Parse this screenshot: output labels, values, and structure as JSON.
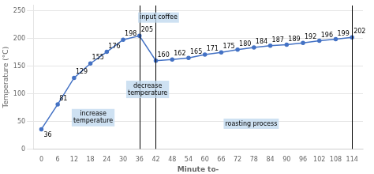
{
  "chart_data": {
    "type": "line",
    "x": [
      0,
      6,
      12,
      18,
      24,
      30,
      36,
      42,
      48,
      54,
      60,
      66,
      72,
      78,
      84,
      90,
      96,
      102,
      108,
      114
    ],
    "values": [
      36,
      81,
      129,
      155,
      176,
      198,
      205,
      160,
      162,
      165,
      171,
      175,
      180,
      184,
      187,
      189,
      192,
      196,
      199,
      202
    ],
    "color": "#4472c4",
    "marker": "circle",
    "data_labels": true,
    "xlabel": "Minute to-",
    "ylabel": "Temperature (°C)",
    "xlim": [
      -3,
      118
    ],
    "ylim": [
      0,
      260
    ],
    "xticks": [
      0,
      6,
      12,
      18,
      24,
      30,
      36,
      42,
      48,
      54,
      60,
      66,
      72,
      78,
      84,
      90,
      96,
      102,
      108,
      114
    ],
    "yticks": [
      0,
      50,
      100,
      150,
      200,
      250
    ],
    "grid": "y",
    "vlines": {
      "x": [
        36,
        42,
        114
      ],
      "color": "black"
    },
    "annotations": [
      {
        "text": "input coffee",
        "x": 43,
        "y": 238,
        "color": "#bdd7ee"
      },
      {
        "text": "increase\ntemperature",
        "x": 19,
        "y": 57,
        "color": "#bdd7ee"
      },
      {
        "text": "decrease\ntemperature",
        "x": 39,
        "y": 108,
        "color": "#bdd7ee"
      },
      {
        "text": "roasting process",
        "x": 77,
        "y": 46,
        "color": "#bdd7ee"
      }
    ]
  }
}
